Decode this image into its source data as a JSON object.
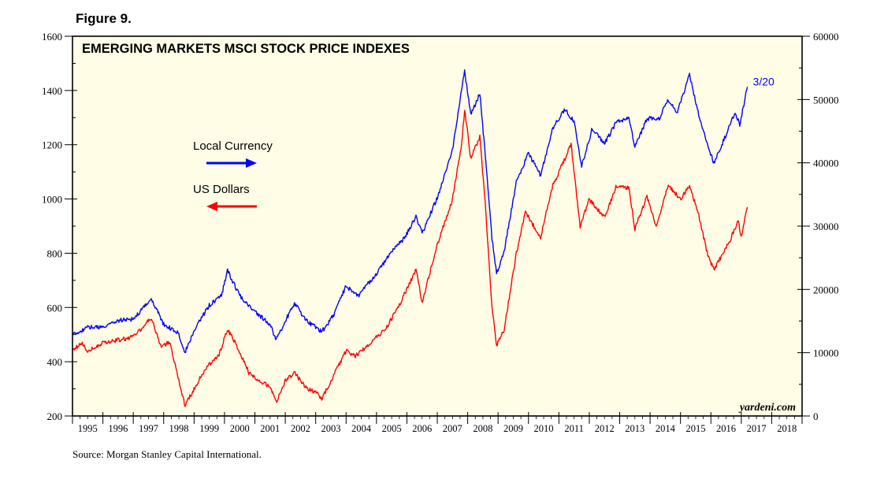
{
  "figure_label": "Figure 9.",
  "source": "Source: Morgan Stanley Capital International.",
  "colors": {
    "background": "#fffde6",
    "local": "#0000ff",
    "usd": "#ff0000"
  },
  "chart_data": {
    "type": "line",
    "title": "EMERGING MARKETS MSCI STOCK PRICE INDEXES",
    "credit": "yardeni.com",
    "end_label": "3/20",
    "x_labels": [
      "1995",
      "1996",
      "1997",
      "1998",
      "1999",
      "2000",
      "2001",
      "2002",
      "2003",
      "2004",
      "2005",
      "2006",
      "2007",
      "2008",
      "2009",
      "2010",
      "2011",
      "2012",
      "2013",
      "2014",
      "2015",
      "2016",
      "2017",
      "2018"
    ],
    "xlim": [
      1995.0,
      2019.0
    ],
    "left_axis": {
      "ylim": [
        200,
        1600
      ],
      "ticks": [
        200,
        400,
        600,
        800,
        1000,
        1200,
        1400,
        1600
      ]
    },
    "right_axis": {
      "ylim": [
        0,
        60000
      ],
      "ticks": [
        0,
        10000,
        20000,
        30000,
        40000,
        50000,
        60000
      ]
    },
    "grid": false,
    "series": [
      {
        "name": "Local Currency",
        "axis": "right",
        "color": "#0000ff",
        "points": [
          [
            1995.0,
            12800
          ],
          [
            1995.5,
            14000
          ],
          [
            1996.0,
            14000
          ],
          [
            1996.5,
            15100
          ],
          [
            1997.0,
            15300
          ],
          [
            1997.6,
            18500
          ],
          [
            1998.0,
            14500
          ],
          [
            1998.5,
            13000
          ],
          [
            1998.7,
            10000
          ],
          [
            1999.0,
            13500
          ],
          [
            1999.5,
            17500
          ],
          [
            1999.9,
            19000
          ],
          [
            2000.1,
            23000
          ],
          [
            2000.5,
            19000
          ],
          [
            2001.0,
            16500
          ],
          [
            2001.5,
            14500
          ],
          [
            2001.7,
            12000
          ],
          [
            2002.0,
            15000
          ],
          [
            2002.3,
            17800
          ],
          [
            2002.7,
            15000
          ],
          [
            2003.0,
            14000
          ],
          [
            2003.2,
            13300
          ],
          [
            2003.6,
            16000
          ],
          [
            2004.0,
            20500
          ],
          [
            2004.4,
            19000
          ],
          [
            2005.0,
            22500
          ],
          [
            2005.5,
            26000
          ],
          [
            2005.9,
            28000
          ],
          [
            2006.3,
            31500
          ],
          [
            2006.5,
            28800
          ],
          [
            2007.0,
            34500
          ],
          [
            2007.5,
            42000
          ],
          [
            2007.8,
            51500
          ],
          [
            2007.9,
            54500
          ],
          [
            2008.1,
            47500
          ],
          [
            2008.4,
            51000
          ],
          [
            2008.6,
            40000
          ],
          [
            2008.8,
            28000
          ],
          [
            2008.95,
            22500
          ],
          [
            2009.2,
            26000
          ],
          [
            2009.6,
            37000
          ],
          [
            2010.0,
            41500
          ],
          [
            2010.4,
            38000
          ],
          [
            2010.8,
            45500
          ],
          [
            2011.2,
            48500
          ],
          [
            2011.5,
            46500
          ],
          [
            2011.75,
            39500
          ],
          [
            2012.1,
            45500
          ],
          [
            2012.5,
            43000
          ],
          [
            2012.9,
            46500
          ],
          [
            2013.3,
            47000
          ],
          [
            2013.5,
            42500
          ],
          [
            2013.9,
            47000
          ],
          [
            2014.3,
            47000
          ],
          [
            2014.6,
            50000
          ],
          [
            2014.9,
            48000
          ],
          [
            2015.3,
            54000
          ],
          [
            2015.6,
            47500
          ],
          [
            2015.9,
            42500
          ],
          [
            2016.1,
            40000
          ],
          [
            2016.5,
            44500
          ],
          [
            2016.8,
            48000
          ],
          [
            2016.95,
            46000
          ],
          [
            2017.2,
            52000
          ]
        ]
      },
      {
        "name": "US Dollars",
        "axis": "left",
        "color": "#ff0000",
        "points": [
          [
            1995.0,
            440
          ],
          [
            1995.3,
            470
          ],
          [
            1995.5,
            440
          ],
          [
            1996.0,
            470
          ],
          [
            1996.5,
            480
          ],
          [
            1997.0,
            490
          ],
          [
            1997.4,
            540
          ],
          [
            1997.6,
            560
          ],
          [
            1997.9,
            460
          ],
          [
            1998.2,
            470
          ],
          [
            1998.5,
            330
          ],
          [
            1998.7,
            240
          ],
          [
            1999.0,
            300
          ],
          [
            1999.4,
            380
          ],
          [
            1999.8,
            420
          ],
          [
            2000.1,
            520
          ],
          [
            2000.4,
            460
          ],
          [
            2000.8,
            360
          ],
          [
            2001.1,
            330
          ],
          [
            2001.5,
            310
          ],
          [
            2001.7,
            250
          ],
          [
            2002.0,
            330
          ],
          [
            2002.3,
            360
          ],
          [
            2002.7,
            300
          ],
          [
            2003.0,
            290
          ],
          [
            2003.2,
            265
          ],
          [
            2003.6,
            350
          ],
          [
            2004.0,
            440
          ],
          [
            2004.3,
            420
          ],
          [
            2004.8,
            470
          ],
          [
            2005.3,
            520
          ],
          [
            2005.8,
            620
          ],
          [
            2006.3,
            740
          ],
          [
            2006.5,
            620
          ],
          [
            2007.0,
            830
          ],
          [
            2007.5,
            1000
          ],
          [
            2007.8,
            1200
          ],
          [
            2007.9,
            1330
          ],
          [
            2008.1,
            1150
          ],
          [
            2008.4,
            1230
          ],
          [
            2008.6,
            950
          ],
          [
            2008.8,
            600
          ],
          [
            2008.95,
            460
          ],
          [
            2009.2,
            520
          ],
          [
            2009.6,
            800
          ],
          [
            2009.9,
            950
          ],
          [
            2010.4,
            860
          ],
          [
            2010.8,
            1050
          ],
          [
            2011.2,
            1150
          ],
          [
            2011.4,
            1200
          ],
          [
            2011.7,
            900
          ],
          [
            2012.0,
            1000
          ],
          [
            2012.5,
            930
          ],
          [
            2012.9,
            1050
          ],
          [
            2013.3,
            1040
          ],
          [
            2013.5,
            890
          ],
          [
            2013.9,
            1010
          ],
          [
            2014.2,
            900
          ],
          [
            2014.6,
            1050
          ],
          [
            2015.0,
            1000
          ],
          [
            2015.3,
            1050
          ],
          [
            2015.6,
            940
          ],
          [
            2015.9,
            790
          ],
          [
            2016.1,
            740
          ],
          [
            2016.6,
            840
          ],
          [
            2016.9,
            920
          ],
          [
            2017.0,
            860
          ],
          [
            2017.2,
            970
          ]
        ]
      }
    ]
  }
}
